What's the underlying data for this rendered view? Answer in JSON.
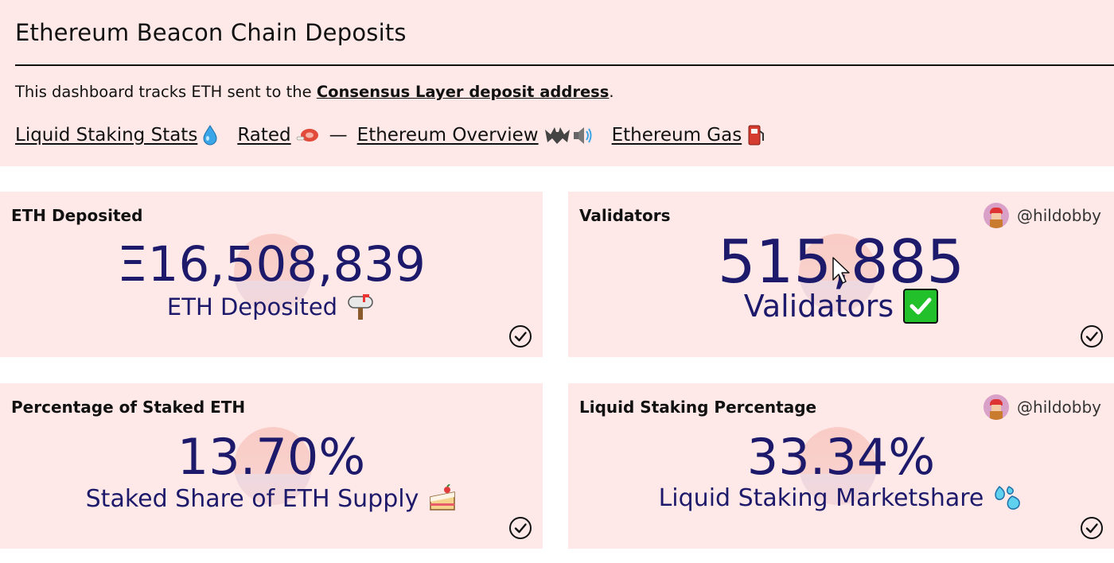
{
  "header": {
    "title": "Ethereum Beacon Chain Deposits",
    "intro_prefix": "This dashboard tracks ETH sent to the ",
    "intro_link": "Consensus Layer deposit address",
    "intro_suffix": ".",
    "links": [
      {
        "label": "Liquid Staking Stats",
        "icon": "water-droplet-icon"
      },
      {
        "label": "Rated",
        "icon": "meat-icon"
      },
      {
        "label": "Ethereum Overview",
        "icon": "bat-speaker-icon"
      },
      {
        "label": "Ethereum Gas",
        "icon": "fuel-pump-icon"
      }
    ],
    "separator": "—"
  },
  "cards": [
    {
      "title": "ETH Deposited",
      "value": "Ξ16,508,839",
      "label": "ETH Deposited",
      "emoji": "📫",
      "author": ""
    },
    {
      "title": "Validators",
      "value": "515,885",
      "label": "Validators",
      "emoji": "✅",
      "author": "@hildobby"
    },
    {
      "title": "Percentage of Staked ETH",
      "value": "13.70%",
      "label": "Staked Share of ETH Supply",
      "emoji": "🍰",
      "author": ""
    },
    {
      "title": "Liquid Staking Percentage",
      "value": "33.34%",
      "label": "Liquid Staking Marketshare",
      "emoji": "💦",
      "author": "@hildobby"
    }
  ],
  "colors": {
    "panel_bg": "#ffe9e8",
    "value_text": "#1d1a6b"
  }
}
